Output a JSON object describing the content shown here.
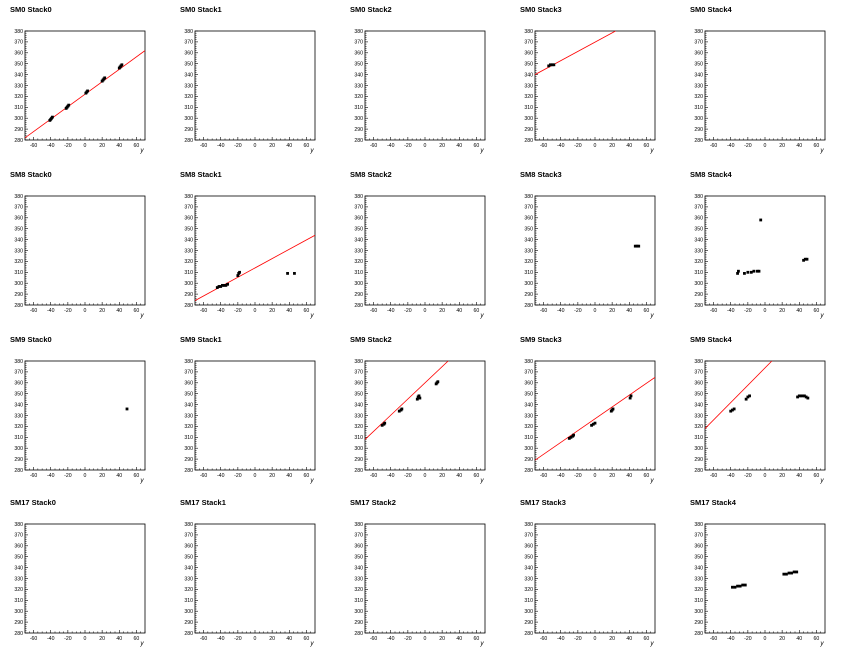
{
  "chart_data": {
    "type": "scatter",
    "layout": "grid 4x5",
    "xticks": [
      "-60",
      "-40",
      "-20",
      "0",
      "20",
      "40",
      "60"
    ],
    "yticks": [
      "280",
      "290",
      "300",
      "310",
      "320",
      "330",
      "340",
      "350",
      "360",
      "370",
      "380"
    ],
    "xlabel": "y",
    "xlim": [
      -70,
      70
    ],
    "ylim": [
      280,
      380
    ],
    "marker_color": "#000000",
    "line_color": "#ff0000",
    "panels": [
      {
        "title": "SM0 Stack0",
        "points": [
          [
            -41,
            298
          ],
          [
            -40,
            299
          ],
          [
            -39,
            300
          ],
          [
            -38,
            301
          ],
          [
            -22,
            309
          ],
          [
            -21,
            310
          ],
          [
            -20,
            311
          ],
          [
            -19,
            312
          ],
          [
            1,
            323
          ],
          [
            2,
            324
          ],
          [
            3,
            325
          ],
          [
            20,
            334
          ],
          [
            21,
            335
          ],
          [
            22,
            336
          ],
          [
            23,
            337
          ],
          [
            40,
            346
          ],
          [
            41,
            347
          ],
          [
            42,
            348
          ],
          [
            43,
            349
          ]
        ],
        "fit": [
          [
            -70,
            282
          ],
          [
            70,
            362
          ]
        ]
      },
      {
        "title": "SM0 Stack1",
        "points": []
      },
      {
        "title": "SM0 Stack2",
        "points": []
      },
      {
        "title": "SM0 Stack3",
        "points": [
          [
            -54,
            348
          ],
          [
            -52,
            349
          ],
          [
            -50,
            349
          ],
          [
            -48,
            349
          ]
        ],
        "fit": [
          [
            -70,
            340
          ],
          [
            24,
            380
          ]
        ]
      },
      {
        "title": "SM0 Stack4",
        "points": []
      },
      {
        "title": "SM8 Stack0",
        "points": []
      },
      {
        "title": "SM8 Stack1",
        "points": [
          [
            -44,
            296
          ],
          [
            -42,
            297
          ],
          [
            -40,
            297
          ],
          [
            -38,
            298
          ],
          [
            -36,
            298
          ],
          [
            -34,
            298
          ],
          [
            -32,
            299
          ],
          [
            -20,
            307
          ],
          [
            -19,
            309
          ],
          [
            -18,
            310
          ],
          [
            38,
            309
          ],
          [
            46,
            309
          ]
        ],
        "fit": [
          [
            -70,
            284
          ],
          [
            70,
            344
          ]
        ]
      },
      {
        "title": "SM8 Stack2",
        "points": []
      },
      {
        "title": "SM8 Stack3",
        "points": [
          [
            47,
            334
          ],
          [
            49,
            334
          ],
          [
            51,
            334
          ]
        ]
      },
      {
        "title": "SM8 Stack4",
        "points": [
          [
            -32,
            309
          ],
          [
            -31,
            311
          ],
          [
            -24,
            309
          ],
          [
            -20,
            310
          ],
          [
            -16,
            310
          ],
          [
            -13,
            311
          ],
          [
            -9,
            311
          ],
          [
            -7,
            311
          ],
          [
            -5,
            358
          ],
          [
            45,
            321
          ],
          [
            47,
            322
          ],
          [
            49,
            322
          ]
        ]
      },
      {
        "title": "SM9 Stack0",
        "points": [
          [
            49,
            336
          ]
        ]
      },
      {
        "title": "SM9 Stack1",
        "points": []
      },
      {
        "title": "SM9 Stack2",
        "points": [
          [
            -50,
            321
          ],
          [
            -48,
            322
          ],
          [
            -47,
            323
          ],
          [
            -30,
            334
          ],
          [
            -28,
            335
          ],
          [
            -27,
            336
          ],
          [
            -9,
            345
          ],
          [
            -8,
            347
          ],
          [
            -7,
            348
          ],
          [
            -6,
            346
          ],
          [
            13,
            359
          ],
          [
            14,
            360
          ],
          [
            15,
            361
          ]
        ],
        "fit": [
          [
            -70,
            308
          ],
          [
            27,
            380
          ]
        ]
      },
      {
        "title": "SM9 Stack3",
        "points": [
          [
            -30,
            309
          ],
          [
            -28,
            310
          ],
          [
            -26,
            311
          ],
          [
            -25,
            312
          ],
          [
            -4,
            321
          ],
          [
            -2,
            322
          ],
          [
            0,
            323
          ],
          [
            19,
            334
          ],
          [
            20,
            335
          ],
          [
            21,
            336
          ],
          [
            41,
            346
          ],
          [
            42,
            348
          ]
        ],
        "fit": [
          [
            -70,
            289
          ],
          [
            70,
            365
          ]
        ]
      },
      {
        "title": "SM9 Stack4",
        "points": [
          [
            -40,
            334
          ],
          [
            -38,
            335
          ],
          [
            -36,
            336
          ],
          [
            -22,
            345
          ],
          [
            -20,
            347
          ],
          [
            -18,
            348
          ],
          [
            38,
            347
          ],
          [
            40,
            348
          ],
          [
            42,
            348
          ],
          [
            44,
            348
          ],
          [
            46,
            348
          ],
          [
            48,
            347
          ],
          [
            50,
            346
          ]
        ],
        "fit": [
          [
            -70,
            318
          ],
          [
            8,
            380
          ]
        ]
      },
      {
        "title": "SM17 Stack0",
        "points": []
      },
      {
        "title": "SM17 Stack1",
        "points": []
      },
      {
        "title": "SM17 Stack2",
        "points": []
      },
      {
        "title": "SM17 Stack3",
        "points": []
      },
      {
        "title": "SM17 Stack4",
        "points": [
          [
            -38,
            322
          ],
          [
            -35,
            322
          ],
          [
            -32,
            323
          ],
          [
            -29,
            323
          ],
          [
            -26,
            324
          ],
          [
            -23,
            324
          ],
          [
            22,
            334
          ],
          [
            25,
            334
          ],
          [
            28,
            335
          ],
          [
            31,
            335
          ],
          [
            34,
            336
          ],
          [
            37,
            336
          ]
        ]
      }
    ]
  }
}
